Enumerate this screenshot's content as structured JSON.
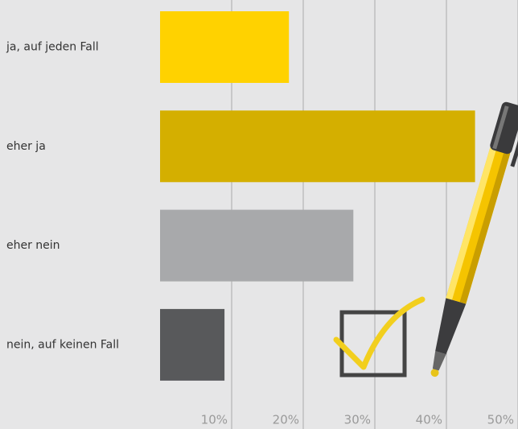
{
  "chart_data": {
    "type": "bar",
    "orientation": "horizontal",
    "categories": [
      "ja, auf jeden Fall",
      "eher ja",
      "eher nein",
      "nein, auf keinen Fall"
    ],
    "values": [
      18,
      44,
      27,
      9
    ],
    "colors": [
      "#ffd200",
      "#d4af00",
      "#a8a9ab",
      "#58595b"
    ],
    "xlim": [
      0,
      50
    ],
    "xticks": [
      {
        "value": 10,
        "label": "10%"
      },
      {
        "value": 20,
        "label": "20%"
      },
      {
        "value": 30,
        "label": "30%"
      },
      {
        "value": 40,
        "label": "40%"
      },
      {
        "value": 50,
        "label": "50%"
      }
    ],
    "grid": true
  }
}
